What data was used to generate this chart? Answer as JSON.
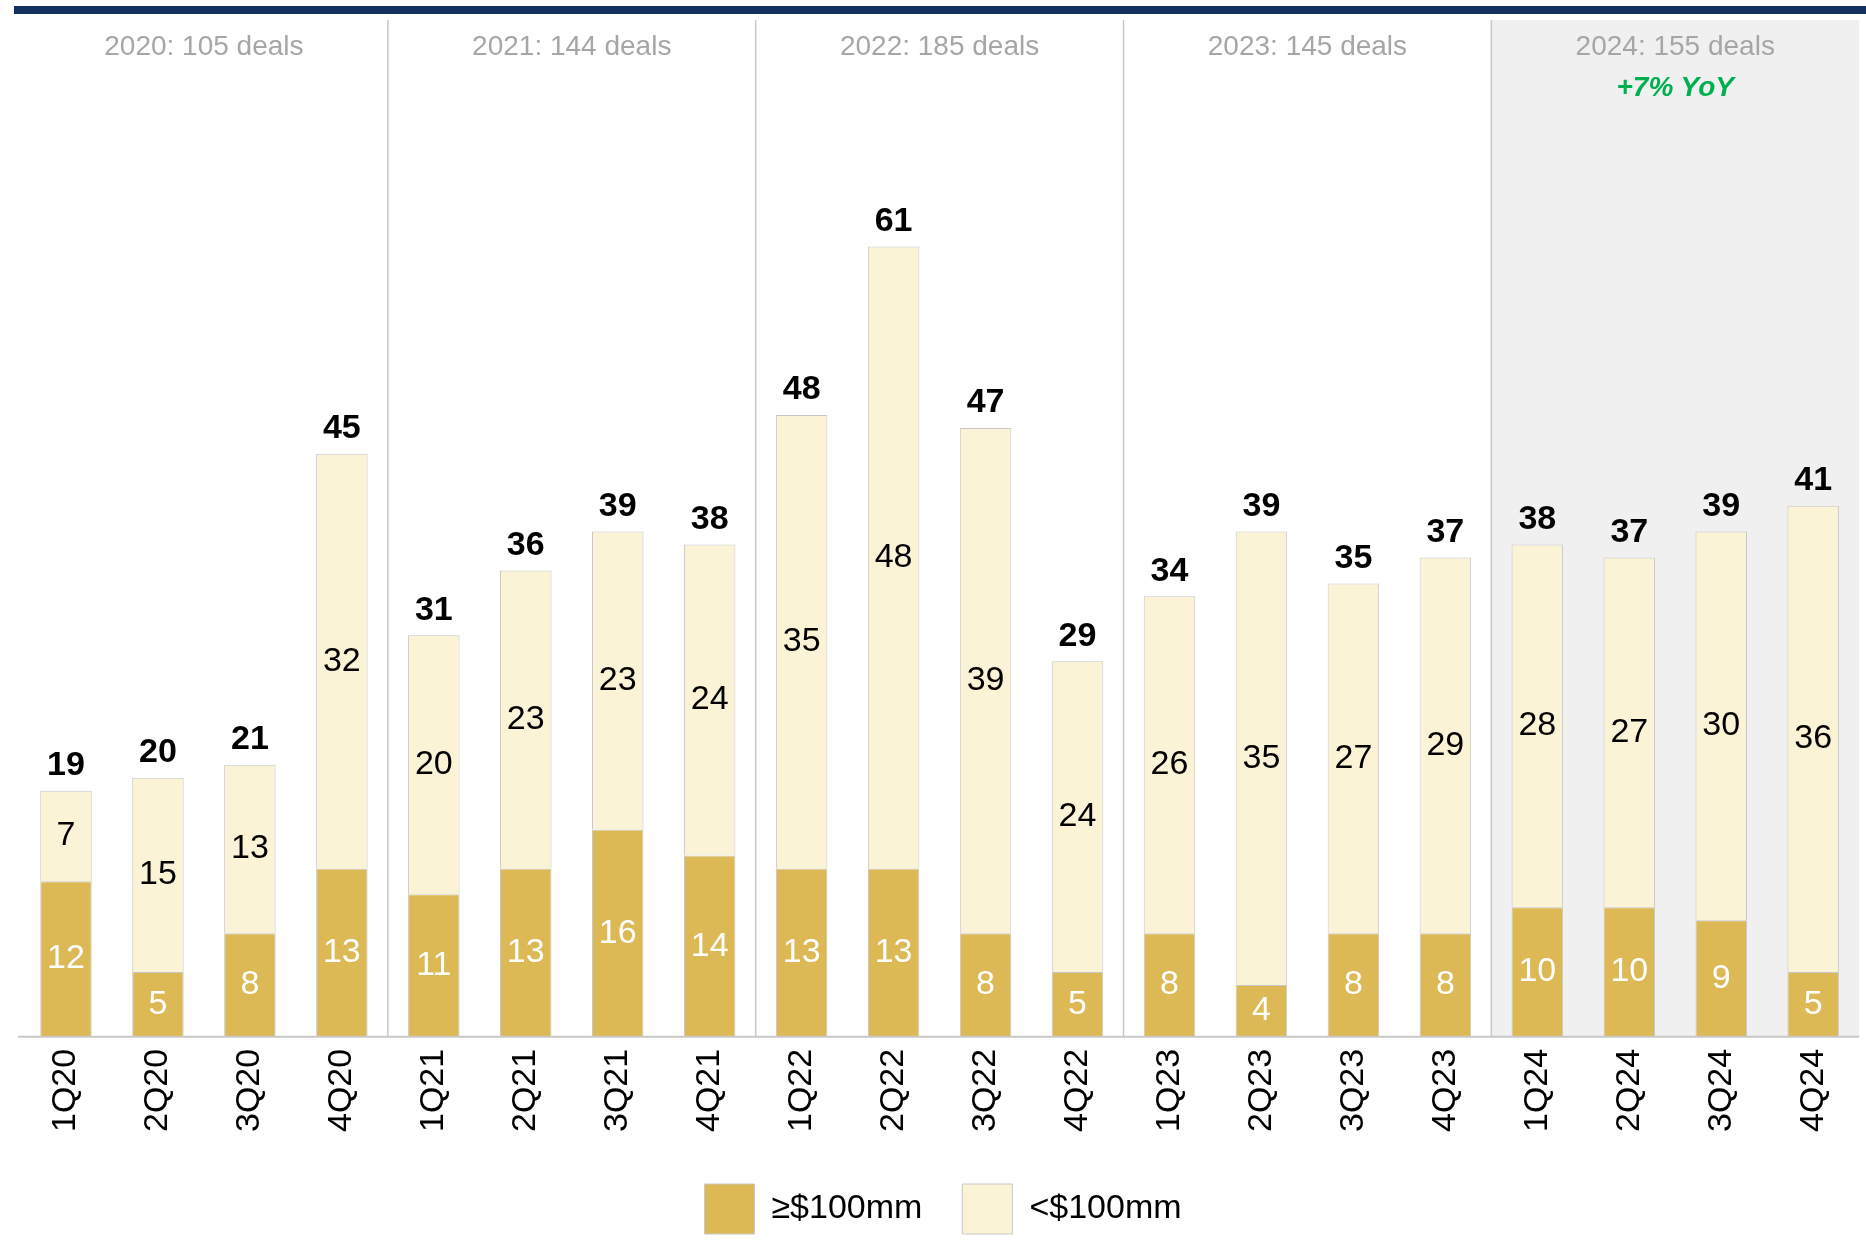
{
  "chart_data": {
    "type": "bar",
    "stacked": true,
    "data_labels": true,
    "grid": false,
    "tick_labels": "x",
    "legend": "bottom",
    "categories": [
      "1Q20",
      "2Q20",
      "3Q20",
      "4Q20",
      "1Q21",
      "2Q21",
      "3Q21",
      "4Q21",
      "1Q22",
      "2Q22",
      "3Q22",
      "4Q22",
      "1Q23",
      "2Q23",
      "3Q23",
      "4Q23",
      "1Q24",
      "2Q24",
      "3Q24",
      "4Q24"
    ],
    "series": [
      {
        "name": "≥$100mm",
        "color": "#dcb955",
        "values": [
          12,
          5,
          8,
          13,
          11,
          13,
          16,
          14,
          13,
          13,
          8,
          5,
          8,
          4,
          8,
          8,
          10,
          10,
          9,
          5
        ]
      },
      {
        "name": "<$100mm",
        "color": "#fbf3d5",
        "values": [
          7,
          15,
          13,
          32,
          20,
          23,
          23,
          24,
          35,
          48,
          39,
          24,
          26,
          35,
          27,
          29,
          28,
          27,
          30,
          36
        ]
      }
    ],
    "totals": [
      "19",
      "20",
      "21",
      "45",
      "31",
      "36",
      "39",
      "38",
      "48",
      "61",
      "47",
      "29",
      "34",
      "39",
      "35",
      "37",
      "38",
      "37",
      "39",
      "41"
    ],
    "bands": [
      {
        "axis": "x",
        "from": "1Q24",
        "to": "4Q24",
        "label": "2024: 155 deals",
        "color": "#f0f0f0"
      }
    ],
    "annotations": [
      "2020: 105 deals",
      "2021: 144 deals",
      "2022: 185 deals",
      "2023: 145 deals",
      "+7% YoY"
    ]
  }
}
